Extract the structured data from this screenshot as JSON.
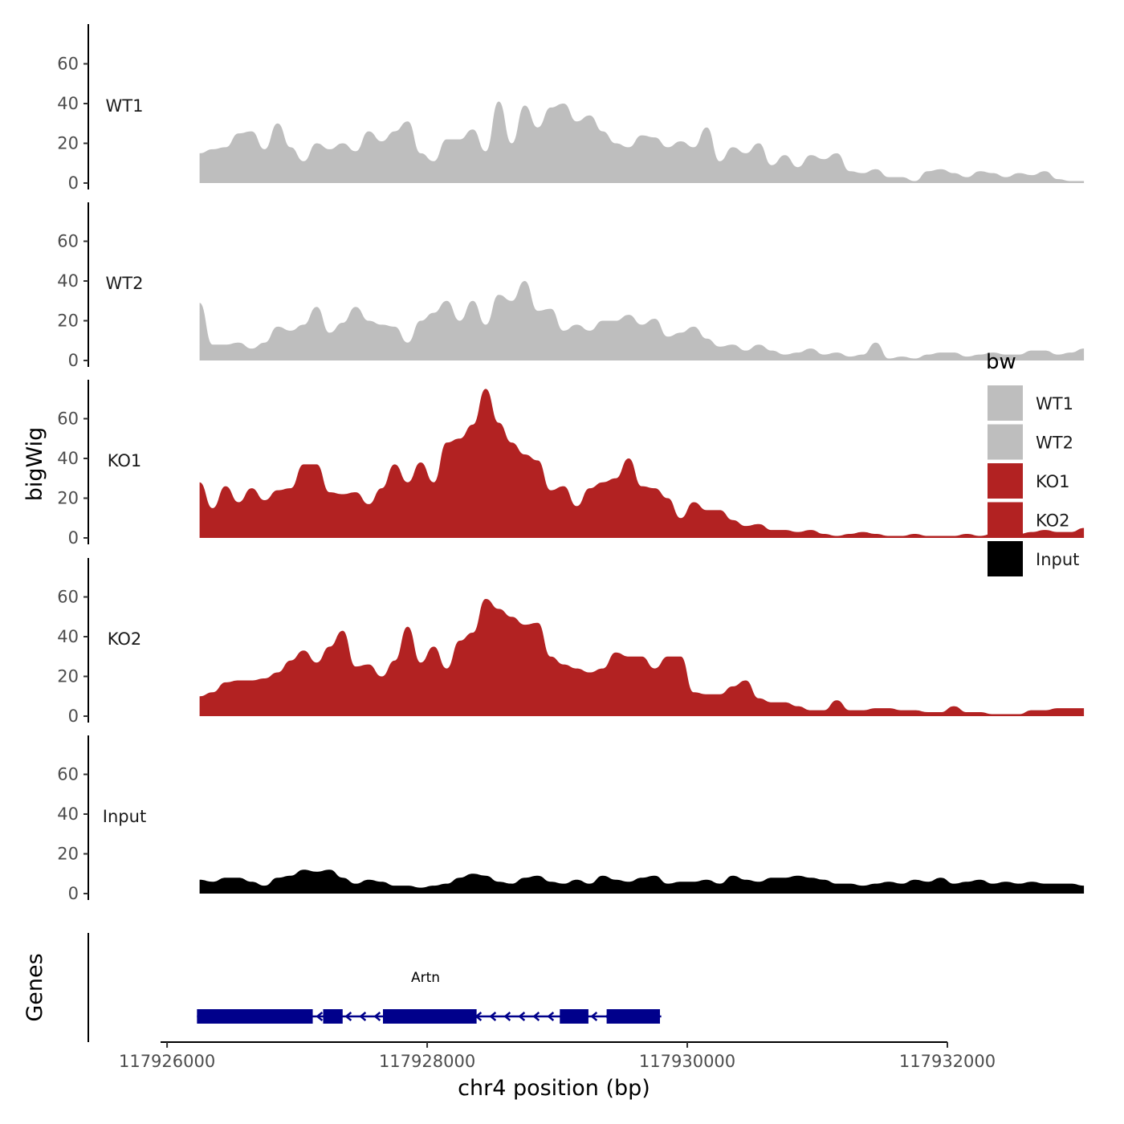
{
  "chart_data": {
    "type": "area",
    "title": "",
    "xlabel": "chr4 position (bp)",
    "ylabel": "bigWig",
    "genes_label": "Genes",
    "xlim": [
      117925950,
      117932000
    ],
    "ylim": [
      0,
      80
    ],
    "x_ticks": [
      117926000,
      117928000,
      117930000,
      117932000
    ],
    "x_tick_labels": [
      "117926000",
      "117928000",
      "117930000",
      "117932000"
    ],
    "y_ticks": [
      0,
      20,
      40,
      60
    ],
    "y_tick_labels": [
      "0",
      "20",
      "40",
      "60"
    ],
    "x_start": 117926250,
    "x_step": 100,
    "legend": {
      "title": "bw",
      "placement": "right",
      "entries": [
        {
          "label": "WT1",
          "color": "#bebebe"
        },
        {
          "label": "WT2",
          "color": "#bebebe"
        },
        {
          "label": "KO1",
          "color": "#b22222"
        },
        {
          "label": "KO2",
          "color": "#b22222"
        },
        {
          "label": "Input",
          "color": "#000000"
        }
      ]
    },
    "series": [
      {
        "name": "WT1",
        "color": "#bebebe",
        "values": [
          15,
          17,
          18,
          25,
          26,
          17,
          30,
          18,
          11,
          20,
          17,
          20,
          16,
          26,
          21,
          26,
          31,
          15,
          11,
          22,
          22,
          27,
          16,
          41,
          20,
          39,
          28,
          38,
          40,
          31,
          34,
          26,
          20,
          18,
          24,
          23,
          18,
          21,
          18,
          28,
          11,
          18,
          15,
          20,
          9,
          14,
          8,
          14,
          12,
          15,
          6,
          5,
          7,
          3,
          3,
          1,
          6,
          7,
          5,
          3,
          6,
          5,
          3,
          5,
          4,
          6,
          2,
          1,
          1
        ]
      },
      {
        "name": "WT2",
        "color": "#bebebe",
        "values": [
          29,
          8,
          8,
          9,
          6,
          9,
          17,
          15,
          18,
          27,
          14,
          19,
          27,
          20,
          18,
          17,
          9,
          20,
          24,
          30,
          20,
          30,
          18,
          33,
          30,
          40,
          25,
          26,
          15,
          18,
          15,
          20,
          20,
          23,
          18,
          21,
          12,
          14,
          17,
          11,
          7,
          8,
          5,
          8,
          5,
          3,
          4,
          6,
          3,
          4,
          2,
          3,
          9,
          1,
          2,
          1,
          3,
          4,
          4,
          2,
          3,
          4,
          3,
          3,
          5,
          5,
          3,
          4,
          6
        ]
      },
      {
        "name": "KO1",
        "color": "#b22222",
        "values": [
          28,
          15,
          26,
          18,
          25,
          19,
          24,
          25,
          37,
          37,
          23,
          22,
          23,
          17,
          25,
          37,
          28,
          38,
          28,
          48,
          50,
          57,
          75,
          58,
          48,
          42,
          39,
          24,
          26,
          16,
          25,
          28,
          30,
          40,
          26,
          25,
          20,
          10,
          18,
          14,
          14,
          9,
          6,
          7,
          4,
          4,
          3,
          4,
          2,
          1,
          2,
          3,
          2,
          1,
          1,
          2,
          1,
          1,
          1,
          2,
          1,
          2,
          2,
          2,
          3,
          4,
          3,
          3,
          5
        ]
      },
      {
        "name": "KO2",
        "color": "#b22222",
        "values": [
          10,
          12,
          17,
          18,
          18,
          19,
          22,
          28,
          33,
          27,
          35,
          43,
          25,
          26,
          20,
          28,
          45,
          27,
          35,
          24,
          38,
          42,
          59,
          54,
          50,
          46,
          47,
          30,
          26,
          24,
          22,
          24,
          32,
          30,
          30,
          24,
          30,
          30,
          12,
          11,
          11,
          15,
          18,
          9,
          7,
          7,
          5,
          3,
          3,
          8,
          3,
          3,
          4,
          4,
          3,
          3,
          2,
          2,
          5,
          2,
          2,
          1,
          1,
          1,
          3,
          3,
          4,
          4,
          4
        ]
      },
      {
        "name": "Input",
        "color": "#000000",
        "values": [
          7,
          6,
          8,
          8,
          6,
          4,
          8,
          9,
          12,
          11,
          12,
          8,
          5,
          7,
          6,
          4,
          4,
          3,
          4,
          5,
          8,
          10,
          9,
          6,
          5,
          8,
          9,
          6,
          5,
          7,
          5,
          9,
          7,
          6,
          8,
          9,
          5,
          6,
          6,
          7,
          5,
          9,
          7,
          6,
          8,
          8,
          9,
          8,
          7,
          5,
          5,
          4,
          5,
          6,
          5,
          7,
          6,
          8,
          5,
          6,
          7,
          5,
          6,
          5,
          6,
          5,
          5,
          5,
          4
        ]
      }
    ],
    "gene": {
      "name": "Artn",
      "strand": "-",
      "color": "#00008b",
      "start": 117926230,
      "end": 117929800,
      "exons": [
        [
          117926230,
          117927120
        ],
        [
          117927200,
          117927350
        ],
        [
          117927660,
          117928200
        ],
        [
          117928030,
          117928380
        ],
        [
          117929020,
          117929240
        ],
        [
          117929380,
          117929790
        ]
      ]
    }
  }
}
